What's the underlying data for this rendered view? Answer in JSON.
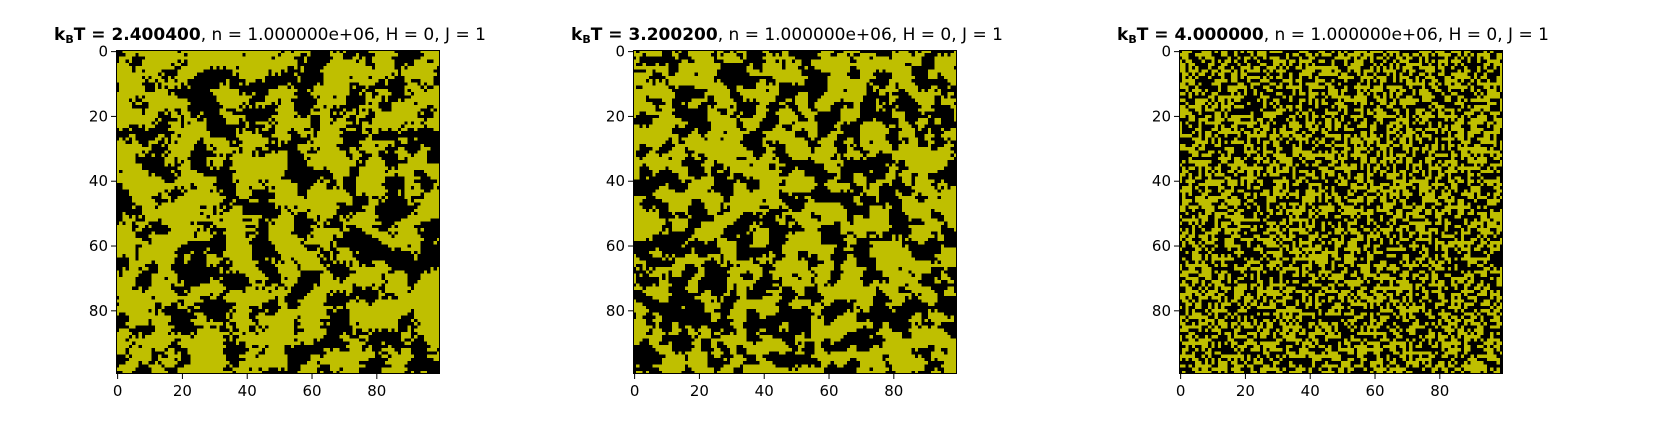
{
  "chart_data": [
    {
      "type": "heatmap",
      "title": {
        "symbol": "k",
        "symbol_sub": "B",
        "symbol_rest": "T",
        "value_text": " = 2.400400",
        "rest": ", n = 1.000000e+06, H = 0, J = 1"
      },
      "kBT": 2.4004,
      "n": 1000000,
      "H": 0,
      "J": 1,
      "grid_size": [
        100,
        100
      ],
      "xlim": [
        -0.5,
        99.5
      ],
      "ylim": [
        99.5,
        -0.5
      ],
      "xticks": [
        0,
        20,
        40,
        60,
        80
      ],
      "yticks": [
        0,
        20,
        40,
        60,
        80
      ],
      "xtick_labels": [
        "0",
        "20",
        "40",
        "60",
        "80"
      ],
      "ytick_labels": [
        "0",
        "20",
        "40",
        "60",
        "80"
      ],
      "colormap": {
        "spin_down": "#000000",
        "spin_up": "#bfbf00"
      },
      "fraction_spin_up": 0.6,
      "domain_texture": "large clusters"
    },
    {
      "type": "heatmap",
      "title": {
        "symbol": "k",
        "symbol_sub": "B",
        "symbol_rest": "T",
        "value_text": " = 3.200200",
        "rest": ", n = 1.000000e+06, H = 0, J = 1"
      },
      "kBT": 3.2002,
      "n": 1000000,
      "H": 0,
      "J": 1,
      "grid_size": [
        100,
        100
      ],
      "xlim": [
        -0.5,
        99.5
      ],
      "ylim": [
        99.5,
        -0.5
      ],
      "xticks": [
        0,
        20,
        40,
        60,
        80
      ],
      "yticks": [
        0,
        20,
        40,
        60,
        80
      ],
      "xtick_labels": [
        "0",
        "20",
        "40",
        "60",
        "80"
      ],
      "ytick_labels": [
        "0",
        "20",
        "40",
        "60",
        "80"
      ],
      "colormap": {
        "spin_down": "#000000",
        "spin_up": "#bfbf00"
      },
      "fraction_spin_up": 0.55,
      "domain_texture": "medium clusters"
    },
    {
      "type": "heatmap",
      "title": {
        "symbol": "k",
        "symbol_sub": "B",
        "symbol_rest": "T",
        "value_text": " = 4.000000",
        "rest": ", n = 1.000000e+06, H = 0, J = 1"
      },
      "kBT": 4.0,
      "n": 1000000,
      "H": 0,
      "J": 1,
      "grid_size": [
        100,
        100
      ],
      "xlim": [
        -0.5,
        99.5
      ],
      "ylim": [
        99.5,
        -0.5
      ],
      "xticks": [
        0,
        20,
        40,
        60,
        80
      ],
      "yticks": [
        0,
        20,
        40,
        60,
        80
      ],
      "xtick_labels": [
        "0",
        "20",
        "40",
        "60",
        "80"
      ],
      "ytick_labels": [
        "0",
        "20",
        "40",
        "60",
        "80"
      ],
      "colormap": {
        "spin_down": "#000000",
        "spin_up": "#bfbf00"
      },
      "fraction_spin_up": 0.5,
      "domain_texture": "fine-grained"
    }
  ]
}
